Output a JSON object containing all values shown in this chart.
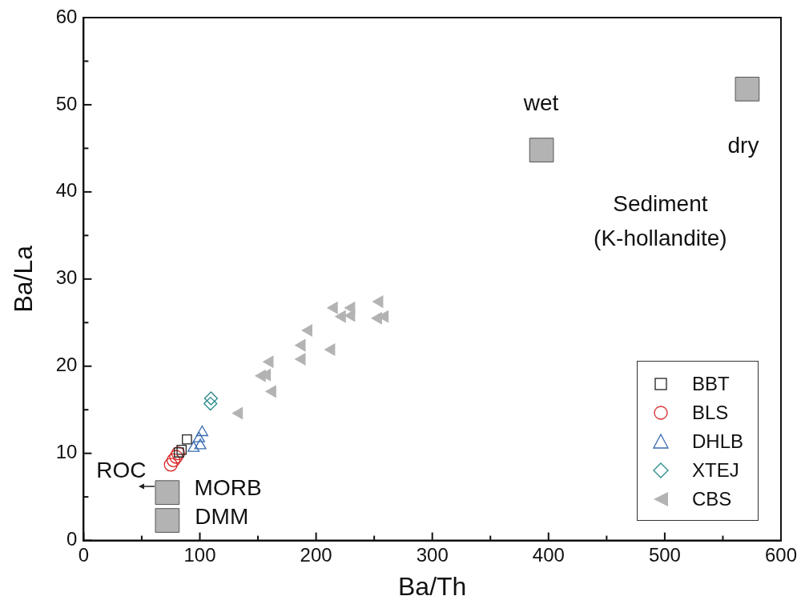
{
  "chart_data": {
    "type": "scatter",
    "xlabel": "Ba/Th",
    "ylabel": "Ba/La",
    "xlim": [
      0,
      600
    ],
    "ylim": [
      0,
      60
    ],
    "xticks": [
      0,
      {
        "value": 50,
        "label": null
      },
      100,
      {
        "value": 150,
        "label": null
      },
      200,
      {
        "value": 250,
        "label": null
      },
      300,
      {
        "value": 350,
        "label": null
      },
      400,
      {
        "value": 450,
        "label": null
      },
      500,
      {
        "value": 550,
        "label": null
      },
      600
    ],
    "yticks": [
      0,
      {
        "value": 5,
        "label": null
      },
      10,
      {
        "value": 15,
        "label": null
      },
      20,
      {
        "value": 25,
        "label": null
      },
      30,
      {
        "value": 35,
        "label": null
      },
      40,
      {
        "value": 45,
        "label": null
      },
      50,
      {
        "value": 55,
        "label": null
      },
      60
    ],
    "grid": false,
    "legend": "bottom right",
    "series": [
      {
        "name": "BBT",
        "color": "#222222",
        "marker": "square",
        "x": [
          88.9,
          84.3,
          82
        ],
        "values": [
          11.6,
          10.4,
          10.1
        ]
      },
      {
        "name": "BLS",
        "color": "#d62728",
        "marker": "circle",
        "x": [
          75,
          77.3,
          79.6,
          81.3
        ],
        "values": [
          8.7,
          9.2,
          9.6,
          10.0
        ]
      },
      {
        "name": "DHLB",
        "color": "#3a6ab0",
        "marker": "triangle",
        "x": [
          102,
          99.2,
          100.4,
          94.6
        ],
        "values": [
          12.4,
          11.7,
          10.9,
          10.6
        ]
      },
      {
        "name": "XTEJ",
        "color": "#2a8a8a",
        "marker": "diamond",
        "x": [
          109.6,
          109.1
        ],
        "values": [
          16.3,
          15.7
        ]
      },
      {
        "name": "CBS",
        "color": "#b3b3b3",
        "marker": "triangle-left",
        "x": [
          133.8,
          162.5,
          153.5,
          157.9,
          160.2,
          187.8,
          187.8,
          193.6,
          213.2,
          215.5,
          222.4,
          230.4,
          230.4,
          254.6,
          253.5,
          259.2
        ],
        "values": [
          14.6,
          17.1,
          18.9,
          19.0,
          20.5,
          20.8,
          22.4,
          24.1,
          21.9,
          26.7,
          25.7,
          26.7,
          25.8,
          27.4,
          25.5,
          25.7
        ]
      },
      {
        "color": "#b3b3b3",
        "marker": "square",
        "x": [
          394,
          571,
          72,
          72
        ],
        "values": [
          44.8,
          51.8,
          5.5,
          2.3
        ]
      }
    ],
    "annotations": [
      "wet",
      "dry",
      "Sediment",
      "(K-hollandite)",
      "ROC",
      "MORB",
      "DMM"
    ]
  }
}
